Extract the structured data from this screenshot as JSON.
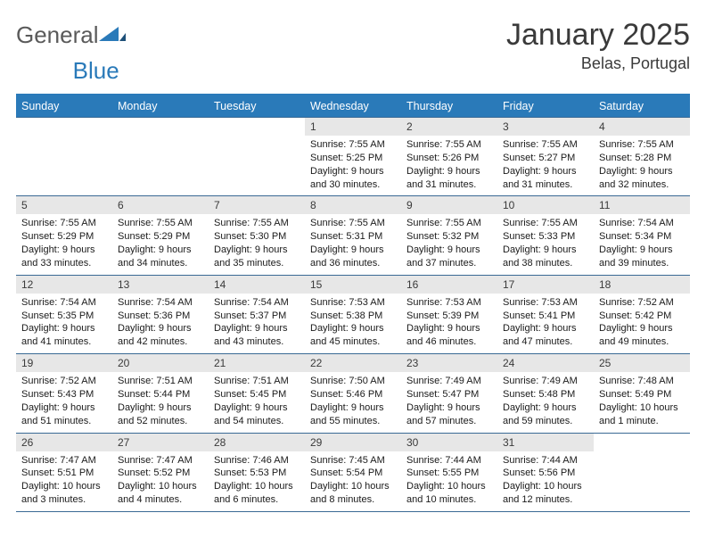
{
  "logo": {
    "word1": "General",
    "word2": "Blue"
  },
  "title": "January 2025",
  "location": "Belas, Portugal",
  "colors": {
    "header_bg": "#2a7ab9",
    "header_text": "#ffffff",
    "daynum_bg": "#e7e7e7",
    "border": "#3a6a95",
    "text": "#1a1a1a"
  },
  "weekdays": [
    "Sunday",
    "Monday",
    "Tuesday",
    "Wednesday",
    "Thursday",
    "Friday",
    "Saturday"
  ],
  "weeks": [
    [
      {
        "n": "",
        "s": ""
      },
      {
        "n": "",
        "s": ""
      },
      {
        "n": "",
        "s": ""
      },
      {
        "n": "1",
        "s": "Sunrise: 7:55 AM\nSunset: 5:25 PM\nDaylight: 9 hours and 30 minutes."
      },
      {
        "n": "2",
        "s": "Sunrise: 7:55 AM\nSunset: 5:26 PM\nDaylight: 9 hours and 31 minutes."
      },
      {
        "n": "3",
        "s": "Sunrise: 7:55 AM\nSunset: 5:27 PM\nDaylight: 9 hours and 31 minutes."
      },
      {
        "n": "4",
        "s": "Sunrise: 7:55 AM\nSunset: 5:28 PM\nDaylight: 9 hours and 32 minutes."
      }
    ],
    [
      {
        "n": "5",
        "s": "Sunrise: 7:55 AM\nSunset: 5:29 PM\nDaylight: 9 hours and 33 minutes."
      },
      {
        "n": "6",
        "s": "Sunrise: 7:55 AM\nSunset: 5:29 PM\nDaylight: 9 hours and 34 minutes."
      },
      {
        "n": "7",
        "s": "Sunrise: 7:55 AM\nSunset: 5:30 PM\nDaylight: 9 hours and 35 minutes."
      },
      {
        "n": "8",
        "s": "Sunrise: 7:55 AM\nSunset: 5:31 PM\nDaylight: 9 hours and 36 minutes."
      },
      {
        "n": "9",
        "s": "Sunrise: 7:55 AM\nSunset: 5:32 PM\nDaylight: 9 hours and 37 minutes."
      },
      {
        "n": "10",
        "s": "Sunrise: 7:55 AM\nSunset: 5:33 PM\nDaylight: 9 hours and 38 minutes."
      },
      {
        "n": "11",
        "s": "Sunrise: 7:54 AM\nSunset: 5:34 PM\nDaylight: 9 hours and 39 minutes."
      }
    ],
    [
      {
        "n": "12",
        "s": "Sunrise: 7:54 AM\nSunset: 5:35 PM\nDaylight: 9 hours and 41 minutes."
      },
      {
        "n": "13",
        "s": "Sunrise: 7:54 AM\nSunset: 5:36 PM\nDaylight: 9 hours and 42 minutes."
      },
      {
        "n": "14",
        "s": "Sunrise: 7:54 AM\nSunset: 5:37 PM\nDaylight: 9 hours and 43 minutes."
      },
      {
        "n": "15",
        "s": "Sunrise: 7:53 AM\nSunset: 5:38 PM\nDaylight: 9 hours and 45 minutes."
      },
      {
        "n": "16",
        "s": "Sunrise: 7:53 AM\nSunset: 5:39 PM\nDaylight: 9 hours and 46 minutes."
      },
      {
        "n": "17",
        "s": "Sunrise: 7:53 AM\nSunset: 5:41 PM\nDaylight: 9 hours and 47 minutes."
      },
      {
        "n": "18",
        "s": "Sunrise: 7:52 AM\nSunset: 5:42 PM\nDaylight: 9 hours and 49 minutes."
      }
    ],
    [
      {
        "n": "19",
        "s": "Sunrise: 7:52 AM\nSunset: 5:43 PM\nDaylight: 9 hours and 51 minutes."
      },
      {
        "n": "20",
        "s": "Sunrise: 7:51 AM\nSunset: 5:44 PM\nDaylight: 9 hours and 52 minutes."
      },
      {
        "n": "21",
        "s": "Sunrise: 7:51 AM\nSunset: 5:45 PM\nDaylight: 9 hours and 54 minutes."
      },
      {
        "n": "22",
        "s": "Sunrise: 7:50 AM\nSunset: 5:46 PM\nDaylight: 9 hours and 55 minutes."
      },
      {
        "n": "23",
        "s": "Sunrise: 7:49 AM\nSunset: 5:47 PM\nDaylight: 9 hours and 57 minutes."
      },
      {
        "n": "24",
        "s": "Sunrise: 7:49 AM\nSunset: 5:48 PM\nDaylight: 9 hours and 59 minutes."
      },
      {
        "n": "25",
        "s": "Sunrise: 7:48 AM\nSunset: 5:49 PM\nDaylight: 10 hours and 1 minute."
      }
    ],
    [
      {
        "n": "26",
        "s": "Sunrise: 7:47 AM\nSunset: 5:51 PM\nDaylight: 10 hours and 3 minutes."
      },
      {
        "n": "27",
        "s": "Sunrise: 7:47 AM\nSunset: 5:52 PM\nDaylight: 10 hours and 4 minutes."
      },
      {
        "n": "28",
        "s": "Sunrise: 7:46 AM\nSunset: 5:53 PM\nDaylight: 10 hours and 6 minutes."
      },
      {
        "n": "29",
        "s": "Sunrise: 7:45 AM\nSunset: 5:54 PM\nDaylight: 10 hours and 8 minutes."
      },
      {
        "n": "30",
        "s": "Sunrise: 7:44 AM\nSunset: 5:55 PM\nDaylight: 10 hours and 10 minutes."
      },
      {
        "n": "31",
        "s": "Sunrise: 7:44 AM\nSunset: 5:56 PM\nDaylight: 10 hours and 12 minutes."
      },
      {
        "n": "",
        "s": ""
      }
    ]
  ]
}
